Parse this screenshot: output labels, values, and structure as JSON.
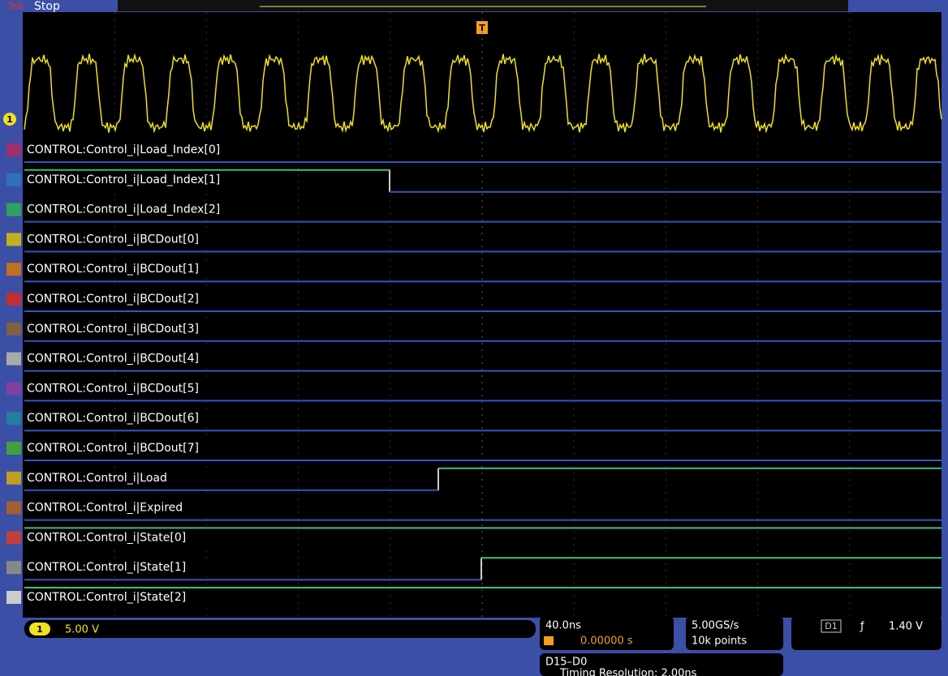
{
  "header": {
    "brand": "Tek",
    "status": "Stop",
    "trigger_marker": "T"
  },
  "channel_1": {
    "marker": "1"
  },
  "channels": [
    "CONTROL:Control_i|Load_Index[0]",
    "CONTROL:Control_i|Load_Index[1]",
    "CONTROL:Control_i|Load_Index[2]",
    "CONTROL:Control_i|BCDout[0]",
    "CONTROL:Control_i|BCDout[1]",
    "CONTROL:Control_i|BCDout[2]",
    "CONTROL:Control_i|BCDout[3]",
    "CONTROL:Control_i|BCDout[4]",
    "CONTROL:Control_i|BCDout[5]",
    "CONTROL:Control_i|BCDout[6]",
    "CONTROL:Control_i|BCDout[7]",
    "CONTROL:Control_i|Load",
    "CONTROL:Control_i|Expired",
    "CONTROL:Control_i|State[0]",
    "CONTROL:Control_i|State[1]",
    "CONTROL:Control_i|State[2]"
  ],
  "status_bar": {
    "channel": "1",
    "scale": "5.00 V",
    "timebase": "40.0ns",
    "position": "0.00000 s",
    "sample_rate": "5.00GS/s",
    "record_length": "10k points",
    "trigger_source": "D1",
    "trigger_slope": "ƒ",
    "trigger_level": "1.40 V",
    "digital_group": "D15–D0",
    "timing_resolution": "Timing Resolution: 2.00ns"
  }
}
